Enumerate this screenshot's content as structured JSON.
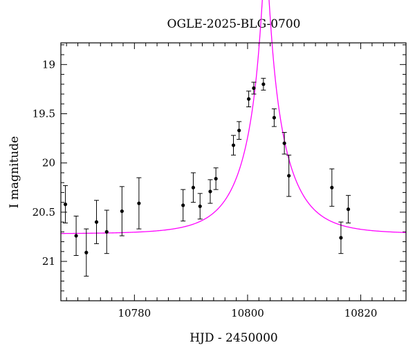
{
  "chart_data": {
    "type": "scatter",
    "title": "OGLE-2025-BLG-0700",
    "xlabel": "HJD - 2450000",
    "ylabel": "I magnitude",
    "xlim": [
      10767,
      10828
    ],
    "ylim": [
      21.4,
      18.78
    ],
    "y_inverted": true,
    "x_ticks": [
      10780,
      10800,
      10820
    ],
    "x_tick_labels": [
      "10780",
      "10800",
      "10820"
    ],
    "y_ticks": [
      19,
      19.5,
      20,
      20.5,
      21
    ],
    "y_tick_labels": [
      "19",
      "19.5",
      "20",
      "20.5",
      "21"
    ],
    "grid": false,
    "series": [
      {
        "kind": "points_with_errorbars",
        "color": "#000000",
        "x": [
          10767.8,
          10769.7,
          10771.5,
          10773.3,
          10775.1,
          10777.8,
          10780.8,
          10788.6,
          10790.4,
          10791.6,
          10793.4,
          10794.4,
          10797.5,
          10798.5,
          10800.2,
          10801.1,
          10802.8,
          10804.7,
          10806.5,
          10807.3,
          10814.9,
          10816.5,
          10817.8
        ],
        "y": [
          20.42,
          20.74,
          20.91,
          20.6,
          20.7,
          20.49,
          20.41,
          20.43,
          20.25,
          20.44,
          20.29,
          20.16,
          19.82,
          19.67,
          19.35,
          19.24,
          19.2,
          19.54,
          19.8,
          20.13,
          20.25,
          20.76,
          20.47
        ],
        "yerr": [
          0.19,
          0.2,
          0.24,
          0.22,
          0.22,
          0.25,
          0.26,
          0.16,
          0.15,
          0.13,
          0.12,
          0.11,
          0.1,
          0.09,
          0.08,
          0.06,
          0.06,
          0.09,
          0.11,
          0.21,
          0.19,
          0.16,
          0.14
        ]
      },
      {
        "kind": "model_curve",
        "color": "#ff00ff",
        "model": "point-source point-lens",
        "t0": 10803.2,
        "u0": 0.08,
        "tE": 7.5,
        "mag_baseline": 20.72
      }
    ]
  }
}
